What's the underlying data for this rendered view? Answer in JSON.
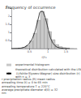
{
  "chart_data": {
    "type": "histogram",
    "title": "Frequency of occurrence",
    "xlabel": "r/r₀",
    "xlim": [
      0,
      1.8
    ],
    "xticks": [
      0.5,
      1,
      1.5
    ],
    "ylim": [
      0,
      2.5
    ],
    "yticks": [
      0.5,
      1,
      1.5,
      2,
      2.5
    ],
    "grid": false,
    "legend": "lower left",
    "series": [
      {
        "name": "experimental histogram",
        "type": "bar",
        "color": "#c8c8c8",
        "bins": [
          0.0,
          0.1,
          0.2,
          0.3,
          0.4,
          0.5,
          0.6,
          0.7,
          0.8,
          0.9,
          1.0,
          1.1,
          1.2,
          1.3,
          1.4,
          1.5,
          1.6,
          1.7,
          1.8
        ],
        "values": [
          0.0,
          0.01,
          0.03,
          0.08,
          0.2,
          0.48,
          0.95,
          1.75,
          2.3,
          1.85,
          1.05,
          0.55,
          0.25,
          0.12,
          0.06,
          0.03,
          0.01,
          0.0
        ]
      },
      {
        "name": "theoretical distribution calculated with the LSW (Lifshitz-Slyozov-Wagner) size distribution (r) with n = 3",
        "type": "line",
        "color": "#111111",
        "x": [
          0.0,
          0.1,
          0.2,
          0.3,
          0.4,
          0.5,
          0.6,
          0.7,
          0.75,
          0.8,
          0.85,
          0.9,
          0.95,
          1.0,
          1.05,
          1.1,
          1.2,
          1.3,
          1.4,
          1.5,
          1.6
        ],
        "values": [
          0.0,
          0.01,
          0.02,
          0.05,
          0.14,
          0.35,
          0.75,
          1.5,
          1.95,
          2.28,
          2.3,
          2.1,
          1.75,
          1.3,
          0.85,
          0.52,
          0.18,
          0.06,
          0.02,
          0.0,
          0.0
        ]
      }
    ],
    "annotations": [
      "r precipitation radius (R) mean radius",
      "annealing time (t) = 0 to 65 min",
      "annealing temperature T = 220°C",
      "average precipitate diameter d(0) = 32",
      "nm"
    ]
  }
}
